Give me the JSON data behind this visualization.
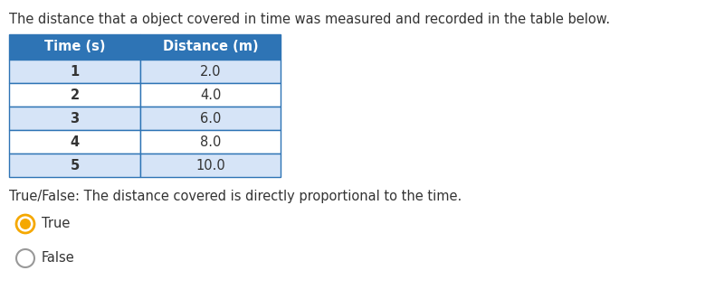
{
  "title_text": "The distance that a object covered in time was measured and recorded in the table below.",
  "header": [
    "Time (s)",
    "Distance (m)"
  ],
  "rows": [
    [
      "1",
      "2.0"
    ],
    [
      "2",
      "4.0"
    ],
    [
      "3",
      "6.0"
    ],
    [
      "4",
      "8.0"
    ],
    [
      "5",
      "10.0"
    ]
  ],
  "header_bg": "#2E74B5",
  "header_text_color": "#FFFFFF",
  "row_bg_odd": "#D6E4F7",
  "row_bg_even": "#FFFFFF",
  "border_color": "#2E74B5",
  "question_text": "True/False: The distance covered is directly proportional to the time.",
  "option_true": "True",
  "option_false": "False",
  "true_selected": true,
  "fig_bg": "#FFFFFF",
  "text_color": "#333333",
  "radio_selected_color": "#F5A800",
  "radio_unselected_color": "#999999",
  "font_size_title": 10.5,
  "font_size_table": 10.5,
  "font_size_question": 10.5,
  "font_size_options": 10.5
}
